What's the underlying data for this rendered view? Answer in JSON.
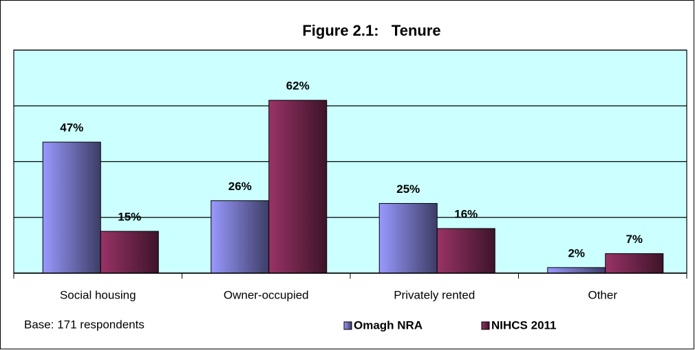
{
  "chart_data": {
    "type": "bar",
    "title": "Figure 2.1:   Tenure",
    "categories": [
      "Social housing",
      "Owner-occupied",
      "Privately rented",
      "Other"
    ],
    "series": [
      {
        "name": "Omagh NRA",
        "color": "#9999ff",
        "values": [
          47,
          26,
          25,
          2
        ],
        "value_labels": [
          "47%",
          "26%",
          "25%",
          "2%"
        ]
      },
      {
        "name": "NIHCS 2011",
        "color": "#993366",
        "values": [
          15,
          62,
          16,
          7
        ],
        "value_labels": [
          "15%",
          "62%",
          "16%",
          "7%"
        ]
      }
    ],
    "ylim": [
      0,
      80
    ],
    "yticks": [
      0,
      20,
      40,
      60,
      80
    ],
    "grid": true,
    "plot_background": "#ccffff",
    "annotation": "Base: 171 respondents"
  }
}
